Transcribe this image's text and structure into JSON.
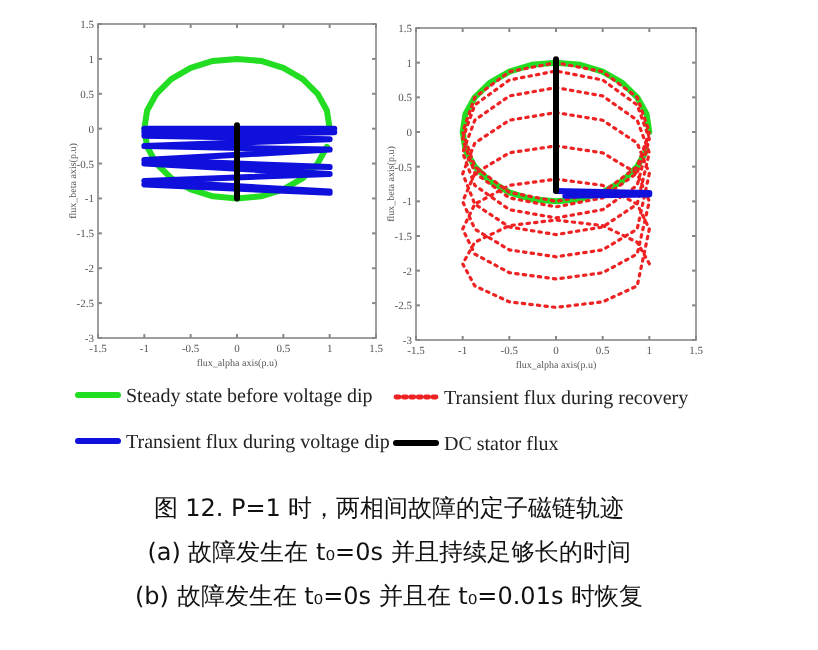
{
  "chart_data": [
    {
      "type": "line",
      "xlabel": "flux_alpha axis(p.u)",
      "ylabel": "flux_beta axis(p.u)",
      "xlim": [
        -1.5,
        1.5
      ],
      "ylim": [
        -3,
        1.5
      ],
      "xticks": [
        -1.5,
        -1,
        -0.5,
        0,
        0.5,
        1,
        1.5
      ],
      "yticks": [
        -3,
        -2.5,
        -2,
        -1.5,
        -1,
        -0.5,
        0,
        0.5,
        1,
        1.5
      ],
      "legend": "bottom",
      "marker": "none",
      "series": [
        {
          "name": "Steady state before voltage dip",
          "color": "#22dd22",
          "line_style": "solid",
          "x": [
            1,
            0.97,
            0.87,
            0.71,
            0.5,
            0.26,
            0,
            -0.26,
            -0.5,
            -0.71,
            -0.87,
            -0.97,
            -1,
            -0.97,
            -0.87,
            -0.71,
            -0.5,
            -0.26,
            0,
            0.26,
            0.5,
            0.71,
            0.87,
            0.97
          ],
          "values": [
            0,
            0.26,
            0.5,
            0.71,
            0.87,
            0.97,
            1,
            0.97,
            0.87,
            0.71,
            0.5,
            0.26,
            0,
            -0.26,
            -0.5,
            -0.71,
            -0.87,
            -0.97,
            -1,
            -0.97,
            -0.87,
            -0.71,
            -0.5,
            -0.26
          ]
        },
        {
          "name": "Transient flux during voltage dip",
          "color": "#1010dd",
          "line_style": "solid",
          "x": [
            -1,
            1.05,
            -1,
            1.05,
            -1,
            1,
            -1,
            1,
            -1,
            1,
            -1,
            1,
            -1,
            1,
            -1,
            1
          ],
          "values": [
            0,
            0,
            -0.05,
            -0.05,
            -0.1,
            -0.15,
            -0.25,
            -0.3,
            -0.45,
            -0.55,
            -0.5,
            -0.65,
            -0.75,
            -0.9,
            -0.8,
            -0.92
          ]
        },
        {
          "color": "#000000",
          "line_style": "solid",
          "x": [
            0,
            0
          ],
          "values": [
            0.05,
            -1
          ]
        }
      ],
      "annotations": [
        "图 12. P=1 时，两相间故障的定子磁链轨迹",
        "(a) 故障发生在 t₀=0s 并且持续足够长的时间",
        "(b) 故障发生在 t₀=0s 并且在 t₀=0.01s 时恢复"
      ]
    },
    {
      "type": "line",
      "xlabel": "flux_alpha axis(p.u)",
      "ylabel": "flux_beta axis(p.u)",
      "xlim": [
        -1.5,
        1.5
      ],
      "ylim": [
        -3,
        1.5
      ],
      "xticks": [
        -1.5,
        -1,
        -0.5,
        0,
        0.5,
        1,
        1.5
      ],
      "yticks": [
        -3,
        -2.5,
        -2,
        -1.5,
        -1,
        -0.5,
        0,
        0.5,
        1,
        1.5
      ],
      "legend": "bottom",
      "marker": "none",
      "series": [
        {
          "color": "#22dd22",
          "line_style": "solid",
          "x": [
            1,
            0.97,
            0.87,
            0.71,
            0.5,
            0.26,
            0,
            -0.26,
            -0.5,
            -0.71,
            -0.87,
            -0.97,
            -1,
            -0.97,
            -0.87,
            -0.71,
            -0.5,
            -0.26,
            0,
            0.26,
            0.5,
            0.71,
            0.87,
            0.97
          ],
          "values": [
            0,
            0.26,
            0.5,
            0.71,
            0.87,
            0.97,
            1,
            0.97,
            0.87,
            0.71,
            0.5,
            0.26,
            0,
            -0.26,
            -0.5,
            -0.71,
            -0.87,
            -0.97,
            -1,
            -0.97,
            -0.87,
            -0.71,
            -0.5,
            -0.26
          ]
        },
        {
          "name": "Transient flux during recovery",
          "color": "#ee2222",
          "line_style": "dotted",
          "x": [
            1,
            0.87,
            0.5,
            0,
            -0.5,
            -0.87,
            -1,
            -0.87,
            -0.5,
            0,
            0.5,
            0.87,
            1,
            0.87,
            0.5,
            0,
            -0.5,
            -0.87,
            -1,
            -0.87,
            -0.5,
            0,
            0.5,
            0.87,
            1,
            0.87,
            0.5,
            0,
            -0.5,
            -0.87,
            -1,
            -0.87,
            -0.5,
            0,
            0.5,
            0.87,
            1,
            0.87,
            0.5,
            0,
            -0.5,
            -0.87,
            -1,
            -0.87,
            -0.5,
            0,
            0.5,
            0.87,
            1,
            0.87,
            0.5,
            0,
            -0.5,
            -0.87,
            -1,
            -0.87,
            -0.5,
            0,
            0.5,
            0.87,
            1,
            0.87,
            0.5,
            0,
            -0.5,
            -0.87,
            -1,
            -0.87,
            -0.5,
            0,
            0.5,
            0.87,
            1,
            0.87,
            0.5,
            0,
            -0.5,
            -0.87,
            -1,
            -0.87,
            -0.5,
            0,
            0.5,
            0.87,
            1
          ],
          "values": [
            -1.9,
            -1.59,
            -1.35,
            -1.27,
            -1.35,
            -1.59,
            -1.9,
            -2.22,
            -2.45,
            -2.53,
            -2.45,
            -2.22,
            -1.4,
            -1.04,
            -0.77,
            -0.68,
            -0.77,
            -1.04,
            -1.4,
            -1.76,
            -2.03,
            -2.12,
            -2.03,
            -1.76,
            -1,
            -0.6,
            -0.3,
            -0.2,
            -0.3,
            -0.6,
            -1,
            -1.4,
            -1.7,
            -1.8,
            -1.7,
            -1.4,
            -0.6,
            -0.16,
            0.17,
            0.28,
            0.17,
            -0.16,
            -0.6,
            -1.04,
            -1.37,
            -1.48,
            -1.37,
            -1.04,
            -0.3,
            0.17,
            0.52,
            0.64,
            0.52,
            0.17,
            -0.3,
            -0.77,
            -1.12,
            -1.24,
            -1.12,
            -0.77,
            -0.1,
            0.39,
            0.75,
            0.88,
            0.75,
            0.39,
            -0.1,
            -0.59,
            -0.95,
            -1.08,
            -0.95,
            -0.59,
            0,
            0.5,
            0.87,
            1,
            0.87,
            0.5,
            0,
            -0.5,
            -0.87,
            -1,
            -0.87,
            -0.5,
            0
          ]
        },
        {
          "color": "#1010dd",
          "line_style": "solid",
          "x": [
            0,
            1,
            0.1,
            1
          ],
          "values": [
            -0.85,
            -0.88,
            -0.92,
            -0.9
          ]
        },
        {
          "name": "DC stator flux",
          "color": "#000000",
          "line_style": "solid",
          "x": [
            0,
            0
          ],
          "values": [
            1.05,
            -0.85
          ]
        }
      ]
    }
  ]
}
